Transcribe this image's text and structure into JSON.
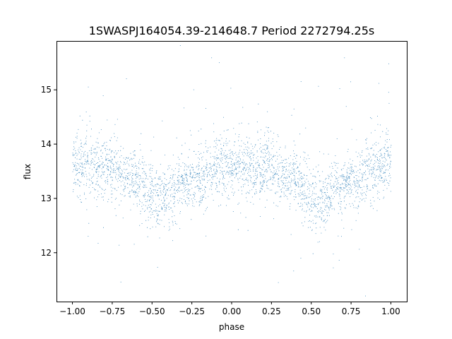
{
  "chart_data": {
    "type": "scatter",
    "title": "1SWASPJ164054.39-214648.7 Period 2272794.25s",
    "xlabel": "phase",
    "ylabel": "flux",
    "xlim": [
      -1.1,
      1.1
    ],
    "ylim": [
      11.1,
      15.9
    ],
    "x_ticks": [
      -1.0,
      -0.75,
      -0.5,
      -0.25,
      0.0,
      0.25,
      0.5,
      0.75,
      1.0
    ],
    "x_tick_labels": [
      "−1.00",
      "−0.75",
      "−0.50",
      "−0.25",
      "0.00",
      "0.25",
      "0.50",
      "0.75",
      "1.00"
    ],
    "y_ticks": [
      12,
      13,
      14,
      15
    ],
    "y_tick_labels": [
      "12",
      "13",
      "14",
      "15"
    ],
    "grid": false,
    "legend": "none",
    "marker_color": "#1f77b4",
    "phase_range": [
      -1.0,
      1.0
    ],
    "flux_profile": [
      {
        "phase": 0.0,
        "flux_median": 13.65,
        "spread": 0.35
      },
      {
        "phase": 0.05,
        "flux_median": 13.6,
        "spread": 0.38
      },
      {
        "phase": 0.1,
        "flux_median": 13.55,
        "spread": 0.4
      },
      {
        "phase": 0.15,
        "flux_median": 13.5,
        "spread": 0.4
      },
      {
        "phase": 0.2,
        "flux_median": 13.55,
        "spread": 0.4
      },
      {
        "phase": 0.25,
        "flux_median": 13.6,
        "spread": 0.38
      },
      {
        "phase": 0.3,
        "flux_median": 13.45,
        "spread": 0.35
      },
      {
        "phase": 0.35,
        "flux_median": 13.4,
        "spread": 0.3
      },
      {
        "phase": 0.4,
        "flux_median": 13.35,
        "spread": 0.35
      },
      {
        "phase": 0.45,
        "flux_median": 13.2,
        "spread": 0.4
      },
      {
        "phase": 0.5,
        "flux_median": 13.05,
        "spread": 0.4
      },
      {
        "phase": 0.55,
        "flux_median": 12.95,
        "spread": 0.38
      },
      {
        "phase": 0.6,
        "flux_median": 13.05,
        "spread": 0.4
      },
      {
        "phase": 0.65,
        "flux_median": 13.2,
        "spread": 0.35
      },
      {
        "phase": 0.7,
        "flux_median": 13.25,
        "spread": 0.3
      },
      {
        "phase": 0.75,
        "flux_median": 13.35,
        "spread": 0.32
      },
      {
        "phase": 0.8,
        "flux_median": 13.4,
        "spread": 0.35
      },
      {
        "phase": 0.85,
        "flux_median": 13.45,
        "spread": 0.35
      },
      {
        "phase": 0.9,
        "flux_median": 13.55,
        "spread": 0.38
      },
      {
        "phase": 0.95,
        "flux_median": 13.65,
        "spread": 0.38
      },
      {
        "phase": 1.0,
        "flux_median": 13.65,
        "spread": 0.35
      }
    ]
  }
}
